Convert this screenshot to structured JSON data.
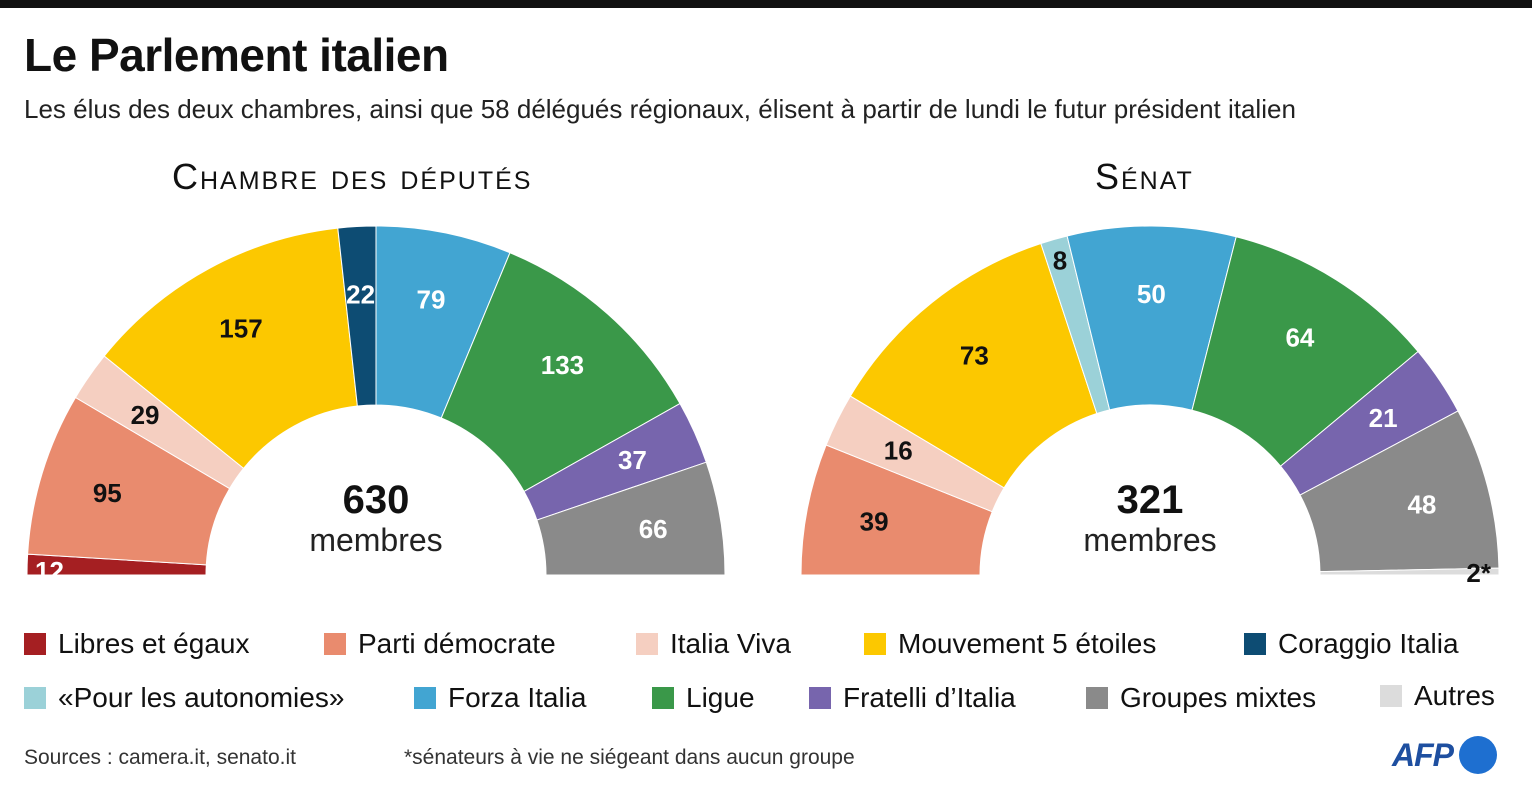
{
  "header": {
    "title": "Le Parlement italien",
    "subtitle": "Les élus des deux chambres, ainsi que 58 délégués régionaux, élisent à partir de lundi le futur président italien"
  },
  "chart_data": [
    {
      "type": "pie",
      "title": "Chambre des députés",
      "total": 630,
      "total_label": "membres",
      "slices": [
        {
          "name": "Libres et égaux",
          "value": 12,
          "color": "#a51f22",
          "label": "12"
        },
        {
          "name": "Parti démocrate",
          "value": 95,
          "color": "#e98b6e",
          "label": "95"
        },
        {
          "name": "Italia Viva",
          "value": 29,
          "color": "#f5cfc1",
          "label": "29"
        },
        {
          "name": "Mouvement 5 étoiles",
          "value": 157,
          "color": "#fcc800",
          "label": "157"
        },
        {
          "name": "Coraggio Italia",
          "value": 22,
          "color": "#0d4c73",
          "label": "22"
        },
        {
          "name": "Forza Italia",
          "value": 79,
          "color": "#42a5d2",
          "label": "79"
        },
        {
          "name": "Ligue",
          "value": 133,
          "color": "#3a9849",
          "label": "133"
        },
        {
          "name": "Fratelli d’Italia",
          "value": 37,
          "color": "#7765ad",
          "label": "37"
        },
        {
          "name": "Groupes mixtes",
          "value": 66,
          "color": "#8a8a8a",
          "label": "66"
        }
      ]
    },
    {
      "type": "pie",
      "title": "Sénat",
      "total": 321,
      "total_label": "membres",
      "slices": [
        {
          "name": "Parti démocrate",
          "value": 39,
          "color": "#e98b6e",
          "label": "39"
        },
        {
          "name": "Italia Viva",
          "value": 16,
          "color": "#f5cfc1",
          "label": "16"
        },
        {
          "name": "Mouvement 5 étoiles",
          "value": 73,
          "color": "#fcc800",
          "label": "73"
        },
        {
          "name": "«Pour les autonomies»",
          "value": 8,
          "color": "#9bd1d8",
          "label": "8"
        },
        {
          "name": "Forza Italia",
          "value": 50,
          "color": "#42a5d2",
          "label": "50"
        },
        {
          "name": "Ligue",
          "value": 64,
          "color": "#3a9849",
          "label": "64"
        },
        {
          "name": "Fratelli d’Italia",
          "value": 21,
          "color": "#7765ad",
          "label": "21"
        },
        {
          "name": "Groupes mixtes",
          "value": 48,
          "color": "#8a8a8a",
          "label": "48"
        },
        {
          "name": "Autres",
          "value": 2,
          "color": "#dcdcdc",
          "label": "2*"
        }
      ]
    }
  ],
  "legend": [
    {
      "name": "Libres et égaux",
      "color": "#a51f22"
    },
    {
      "name": "Parti démocrate",
      "color": "#e98b6e"
    },
    {
      "name": "Italia Viva",
      "color": "#f5cfc1"
    },
    {
      "name": "Mouvement 5 étoiles",
      "color": "#fcc800"
    },
    {
      "name": "Coraggio Italia",
      "color": "#0d4c73"
    },
    {
      "name": "«Pour les autonomies»",
      "color": "#9bd1d8"
    },
    {
      "name": "Forza Italia",
      "color": "#42a5d2"
    },
    {
      "name": "Ligue",
      "color": "#3a9849"
    },
    {
      "name": "Fratelli d’Italia",
      "color": "#7765ad"
    },
    {
      "name": "Groupes mixtes",
      "color": "#8a8a8a"
    },
    {
      "name": "Autres",
      "color": "#dcdcdc"
    }
  ],
  "footer": {
    "sources": "Sources : camera.it, senato.it",
    "footnote": "*sénateurs à vie ne siégeant dans aucun groupe",
    "logo": "AFP"
  }
}
